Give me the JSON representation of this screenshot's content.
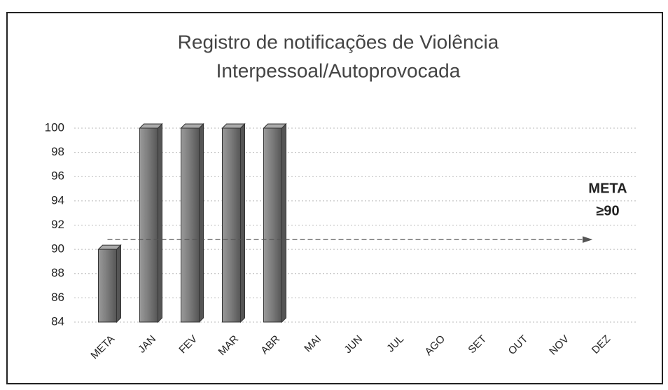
{
  "chart_data": {
    "type": "bar",
    "title": [
      "Registro de notificações de Violência",
      "Interpessoal/Autoprovocada"
    ],
    "categories": [
      "META",
      "JAN",
      "FEV",
      "MAR",
      "ABR",
      "MAI",
      "JUN",
      "JUL",
      "AGO",
      "SET",
      "OUT",
      "NOV",
      "DEZ"
    ],
    "values": [
      90,
      100,
      100,
      100,
      100,
      null,
      null,
      null,
      null,
      null,
      null,
      null,
      null
    ],
    "color": "#808080",
    "ylim": [
      84,
      100
    ],
    "yticks": [
      84,
      86,
      88,
      90,
      92,
      94,
      96,
      98,
      100
    ],
    "grid": true,
    "annotation": [
      "META",
      "≥90"
    ]
  }
}
